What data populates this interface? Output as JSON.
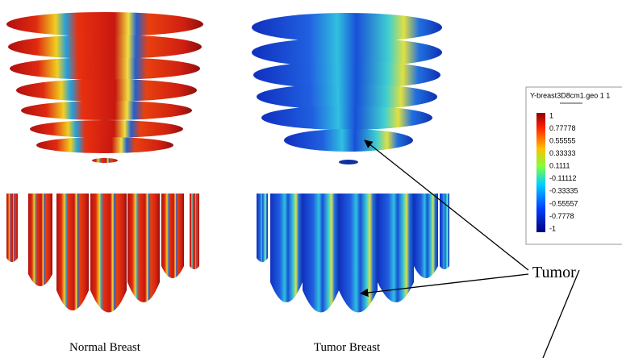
{
  "captions": {
    "left": "Normal Breast",
    "right": "Tumor Breast"
  },
  "annotation": "Tumor",
  "colorbar": {
    "title": "Y-breast3D8cm1.geo 1 1",
    "labels": [
      "1",
      "0.77778",
      "0.55555",
      "0.33333",
      "0.1111",
      "-0.11112",
      "-0.33335",
      "-0.55557",
      "-0.7778",
      "-1"
    ]
  }
}
